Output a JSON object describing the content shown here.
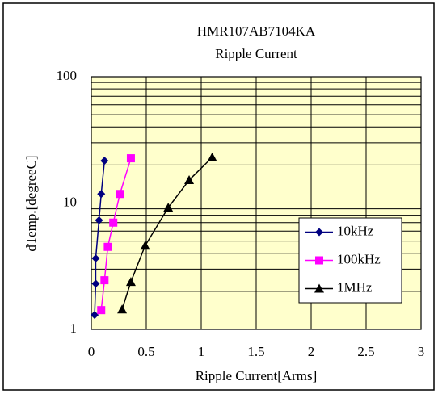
{
  "chart_data": {
    "type": "line",
    "title": "HMR107AB7104KA",
    "subtitle": "Ripple Current",
    "x_label": "Ripple Current[Arms]",
    "y_label": "dTemp.[degreeC]",
    "xlim": [
      0,
      3
    ],
    "xticks": [
      0,
      0.5,
      1,
      1.5,
      2,
      2.5,
      3
    ],
    "ylim": [
      1,
      100
    ],
    "yticks": [
      1,
      10,
      100
    ],
    "y_minor_ticks": [
      2,
      3,
      4,
      5,
      6,
      7,
      8,
      9,
      20,
      30,
      40,
      50,
      60,
      70,
      80,
      90
    ],
    "y_log": true,
    "grid": true,
    "legend": "lower right",
    "series": [
      {
        "name": "10kHz",
        "color": "#000080",
        "marker": "diamond",
        "x": [
          0.03,
          0.04,
          0.04,
          0.07,
          0.09,
          0.12
        ],
        "values": [
          1.3,
          2.3,
          3.65,
          7.3,
          11.8,
          21.6
        ]
      },
      {
        "name": "100kHz",
        "color": "#ff00ff",
        "marker": "square",
        "x": [
          0.09,
          0.12,
          0.15,
          0.2,
          0.26,
          0.36
        ],
        "values": [
          1.42,
          2.45,
          4.5,
          7.0,
          11.8,
          22.6
        ]
      },
      {
        "name": "1MHz",
        "color": "#000000",
        "marker": "triangle",
        "x": [
          0.28,
          0.36,
          0.49,
          0.7,
          0.89,
          1.1
        ],
        "values": [
          1.44,
          2.38,
          4.6,
          9.2,
          15.2,
          23
        ]
      }
    ]
  }
}
